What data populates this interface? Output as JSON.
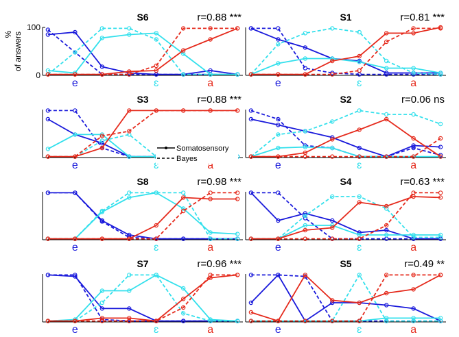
{
  "colors": {
    "e": "#1a1adb",
    "eps": "#33e0ec",
    "a": "#e52a1c",
    "axis": "#000000"
  },
  "y_axis_label": [
    "%",
    "of answers"
  ],
  "legend": {
    "solid": "Somatosensory",
    "dashed": "Bayes"
  },
  "chart_data": [
    {
      "type": "line",
      "title": "S6",
      "stat": "r=0.88 ***",
      "x": [
        1,
        2,
        3,
        4,
        5,
        6,
        7,
        8
      ],
      "categories": [
        "e",
        "ɛ",
        "a"
      ],
      "ylim": [
        0,
        100
      ],
      "yticks": [
        0,
        100
      ],
      "series": [
        {
          "cat": "e",
          "style": "solid",
          "values": [
            85,
            90,
            18,
            5,
            2,
            2,
            10,
            2
          ]
        },
        {
          "cat": "e",
          "style": "dashed",
          "values": [
            95,
            48,
            2,
            2,
            2,
            2,
            2,
            2
          ]
        },
        {
          "cat": "eps",
          "style": "solid",
          "values": [
            10,
            5,
            78,
            85,
            88,
            45,
            2,
            2
          ]
        },
        {
          "cat": "eps",
          "style": "dashed",
          "values": [
            2,
            48,
            98,
            98,
            75,
            2,
            2,
            2
          ]
        },
        {
          "cat": "a",
          "style": "solid",
          "values": [
            2,
            2,
            2,
            8,
            10,
            52,
            75,
            98
          ]
        },
        {
          "cat": "a",
          "style": "dashed",
          "values": [
            2,
            2,
            2,
            2,
            20,
            98,
            98,
            98
          ]
        }
      ]
    },
    {
      "type": "line",
      "title": "S1",
      "stat": "r=0.81 ***",
      "x": [
        1,
        2,
        3,
        4,
        5,
        6,
        7,
        8
      ],
      "categories": [
        "e",
        "ɛ",
        "a"
      ],
      "ylim": [
        0,
        100
      ],
      "series": [
        {
          "cat": "e",
          "style": "solid",
          "values": [
            98,
            75,
            58,
            35,
            30,
            5,
            5,
            5
          ]
        },
        {
          "cat": "e",
          "style": "dashed",
          "values": [
            98,
            98,
            15,
            5,
            2,
            2,
            2,
            2
          ]
        },
        {
          "cat": "eps",
          "style": "solid",
          "values": [
            2,
            25,
            35,
            35,
            28,
            15,
            15,
            5
          ]
        },
        {
          "cat": "eps",
          "style": "dashed",
          "values": [
            2,
            65,
            88,
            98,
            90,
            30,
            5,
            2
          ]
        },
        {
          "cat": "a",
          "style": "solid",
          "values": [
            2,
            2,
            2,
            30,
            40,
            88,
            88,
            100
          ]
        },
        {
          "cat": "a",
          "style": "dashed",
          "values": [
            2,
            2,
            2,
            2,
            10,
            70,
            98,
            98
          ]
        }
      ]
    },
    {
      "type": "line",
      "title": "S3",
      "stat": "r=0.88 ***",
      "x": [
        1,
        2,
        3,
        4,
        5,
        6,
        7,
        8
      ],
      "categories": [
        "e",
        "ɛ",
        "a"
      ],
      "ylim": [
        0,
        100
      ],
      "series": [
        {
          "cat": "e",
          "style": "solid",
          "values": [
            80,
            48,
            30,
            2,
            2,
            2,
            2,
            2
          ]
        },
        {
          "cat": "e",
          "style": "dashed",
          "values": [
            98,
            98,
            20,
            2,
            2,
            2,
            2,
            2
          ]
        },
        {
          "cat": "eps",
          "style": "solid",
          "values": [
            18,
            48,
            48,
            2,
            2,
            2,
            2,
            2
          ]
        },
        {
          "cat": "eps",
          "style": "dashed",
          "values": [
            2,
            2,
            35,
            48,
            2,
            2,
            2,
            2
          ]
        },
        {
          "cat": "a",
          "style": "solid",
          "values": [
            2,
            2,
            20,
            98,
            98,
            98,
            98,
            98
          ]
        },
        {
          "cat": "a",
          "style": "dashed",
          "values": [
            2,
            2,
            45,
            55,
            98,
            98,
            98,
            98
          ]
        }
      ]
    },
    {
      "type": "line",
      "title": "S2",
      "stat": "r=0.06 ns",
      "x": [
        1,
        2,
        3,
        4,
        5,
        6,
        7,
        8
      ],
      "categories": [
        "e",
        "ɛ",
        "a"
      ],
      "ylim": [
        0,
        100
      ],
      "series": [
        {
          "cat": "e",
          "style": "solid",
          "values": [
            80,
            68,
            55,
            42,
            20,
            2,
            25,
            22
          ]
        },
        {
          "cat": "e",
          "style": "dashed",
          "values": [
            98,
            80,
            25,
            20,
            2,
            2,
            20,
            5
          ]
        },
        {
          "cat": "eps",
          "style": "solid",
          "values": [
            2,
            20,
            22,
            20,
            2,
            2,
            2,
            2
          ]
        },
        {
          "cat": "eps",
          "style": "dashed",
          "values": [
            2,
            48,
            55,
            75,
            98,
            90,
            90,
            70
          ]
        },
        {
          "cat": "a",
          "style": "solid",
          "values": [
            2,
            2,
            10,
            38,
            58,
            80,
            40,
            2
          ]
        },
        {
          "cat": "a",
          "style": "dashed",
          "values": [
            2,
            2,
            2,
            2,
            2,
            2,
            2,
            40
          ]
        }
      ]
    },
    {
      "type": "line",
      "title": "S8",
      "stat": "r=0.98 ***",
      "x": [
        1,
        2,
        3,
        4,
        5,
        6,
        7,
        8
      ],
      "categories": [
        "e",
        "ɛ",
        "a"
      ],
      "ylim": [
        0,
        100
      ],
      "series": [
        {
          "cat": "e",
          "style": "solid",
          "values": [
            98,
            98,
            40,
            10,
            2,
            2,
            2,
            2
          ]
        },
        {
          "cat": "e",
          "style": "dashed",
          "values": [
            98,
            98,
            38,
            5,
            2,
            2,
            2,
            2
          ]
        },
        {
          "cat": "eps",
          "style": "solid",
          "values": [
            2,
            2,
            58,
            88,
            98,
            65,
            15,
            12
          ]
        },
        {
          "cat": "eps",
          "style": "dashed",
          "values": [
            2,
            2,
            60,
            98,
            98,
            98,
            2,
            2
          ]
        },
        {
          "cat": "a",
          "style": "solid",
          "values": [
            2,
            2,
            2,
            2,
            30,
            88,
            85,
            85
          ]
        },
        {
          "cat": "a",
          "style": "dashed",
          "values": [
            2,
            2,
            2,
            2,
            2,
            60,
            98,
            98
          ]
        }
      ]
    },
    {
      "type": "line",
      "title": "S4",
      "stat": "r=0.63 ***",
      "x": [
        1,
        2,
        3,
        4,
        5,
        6,
        7,
        8
      ],
      "categories": [
        "e",
        "ɛ",
        "a"
      ],
      "ylim": [
        0,
        100
      ],
      "series": [
        {
          "cat": "e",
          "style": "solid",
          "values": [
            98,
            40,
            55,
            40,
            15,
            20,
            2,
            2
          ]
        },
        {
          "cat": "e",
          "style": "dashed",
          "values": [
            98,
            98,
            45,
            2,
            2,
            2,
            2,
            2
          ]
        },
        {
          "cat": "eps",
          "style": "solid",
          "values": [
            2,
            2,
            30,
            30,
            10,
            10,
            10,
            10
          ]
        },
        {
          "cat": "eps",
          "style": "dashed",
          "values": [
            2,
            2,
            50,
            90,
            90,
            65,
            5,
            5
          ]
        },
        {
          "cat": "a",
          "style": "solid",
          "values": [
            2,
            2,
            20,
            25,
            78,
            70,
            90,
            88
          ]
        },
        {
          "cat": "a",
          "style": "dashed",
          "values": [
            2,
            2,
            2,
            2,
            2,
            30,
            98,
            98
          ]
        }
      ]
    },
    {
      "type": "line",
      "title": "S7",
      "stat": "r=0.96 ***",
      "x": [
        1,
        2,
        3,
        4,
        5,
        6,
        7,
        8
      ],
      "categories": [
        "e",
        "ɛ",
        "a"
      ],
      "ylim": [
        0,
        100
      ],
      "series": [
        {
          "cat": "e",
          "style": "solid",
          "values": [
            98,
            95,
            28,
            28,
            2,
            2,
            2,
            2
          ]
        },
        {
          "cat": "e",
          "style": "dashed",
          "values": [
            98,
            98,
            5,
            2,
            2,
            2,
            2,
            2
          ]
        },
        {
          "cat": "eps",
          "style": "solid",
          "values": [
            2,
            5,
            65,
            65,
            98,
            70,
            5,
            2
          ]
        },
        {
          "cat": "eps",
          "style": "dashed",
          "values": [
            2,
            2,
            40,
            98,
            98,
            18,
            2,
            2
          ]
        },
        {
          "cat": "a",
          "style": "solid",
          "values": [
            2,
            2,
            8,
            8,
            2,
            48,
            92,
            98
          ]
        },
        {
          "cat": "a",
          "style": "dashed",
          "values": [
            2,
            2,
            2,
            2,
            2,
            30,
            98,
            98
          ]
        }
      ]
    },
    {
      "type": "line",
      "title": "S5",
      "stat": "r=0.49 **",
      "x": [
        1,
        2,
        3,
        4,
        5,
        6,
        7,
        8
      ],
      "categories": [
        "e",
        "ɛ",
        "a"
      ],
      "ylim": [
        0,
        100
      ],
      "series": [
        {
          "cat": "e",
          "style": "solid",
          "values": [
            40,
            98,
            2,
            40,
            40,
            35,
            28,
            2
          ]
        },
        {
          "cat": "e",
          "style": "dashed",
          "values": [
            98,
            98,
            95,
            2,
            2,
            2,
            2,
            2
          ]
        },
        {
          "cat": "eps",
          "style": "solid",
          "values": [
            2,
            2,
            2,
            2,
            2,
            8,
            8,
            8
          ]
        },
        {
          "cat": "eps",
          "style": "dashed",
          "values": [
            2,
            2,
            2,
            2,
            98,
            2,
            2,
            2
          ]
        },
        {
          "cat": "a",
          "style": "solid",
          "values": [
            20,
            2,
            98,
            45,
            40,
            60,
            68,
            98
          ]
        },
        {
          "cat": "a",
          "style": "dashed",
          "values": [
            2,
            2,
            2,
            2,
            2,
            98,
            98,
            98
          ]
        }
      ]
    }
  ]
}
